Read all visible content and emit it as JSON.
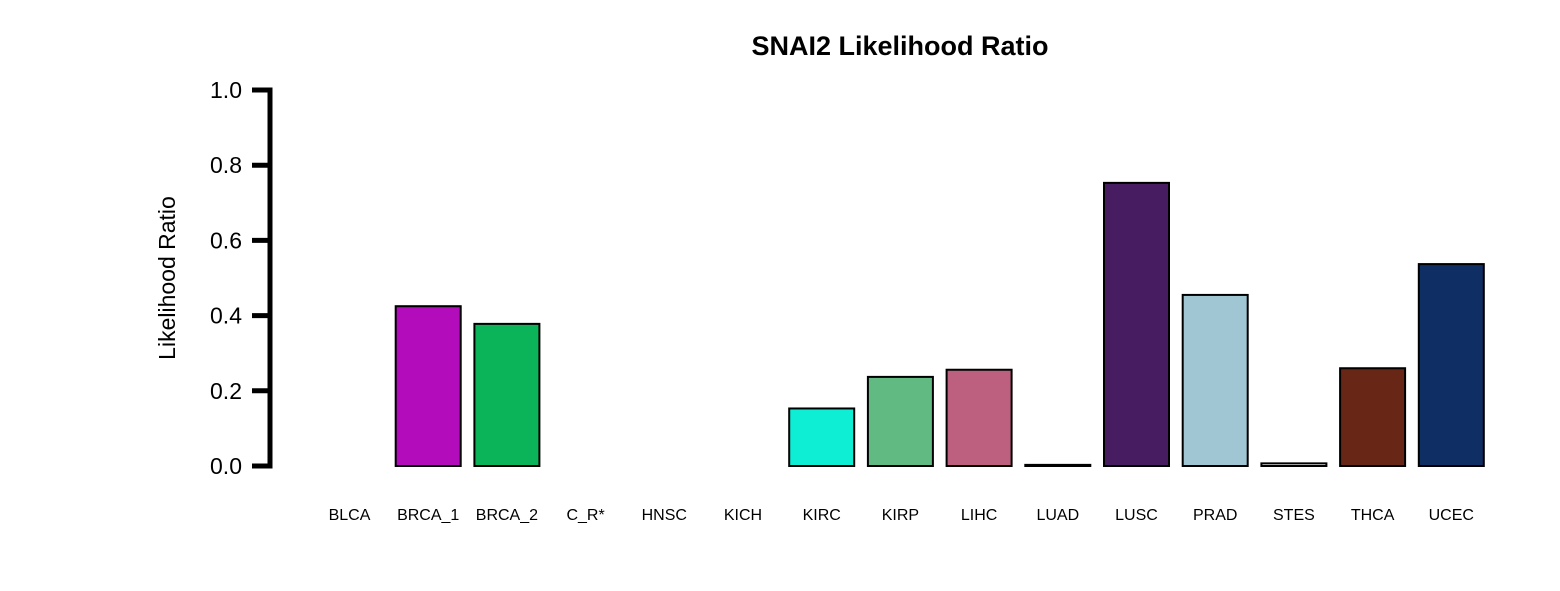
{
  "chart_data": {
    "type": "bar",
    "title": "SNAI2 Likelihood Ratio",
    "xlabel": "",
    "ylabel": "Likelihood Ratio",
    "ylim": [
      0,
      1.0
    ],
    "y_ticks": [
      "0.0",
      "0.2",
      "0.4",
      "0.6",
      "0.8",
      "1.0"
    ],
    "grid": false,
    "legend": "none",
    "categories": [
      "BLCA",
      "BRCA_1",
      "BRCA_2",
      "C_R*",
      "HNSC",
      "KICH",
      "KIRC",
      "KIRP",
      "LIHC",
      "LUAD",
      "LUSC",
      "PRAD",
      "STES",
      "THCA",
      "UCEC"
    ],
    "values": [
      0.0,
      0.425,
      0.378,
      0.0,
      0.0,
      0.0,
      0.153,
      0.237,
      0.256,
      0.003,
      0.753,
      0.455,
      0.007,
      0.26,
      0.537
    ],
    "colors": [
      "#ffffff",
      "#b30cbb",
      "#0bb458",
      "#ffffff",
      "#ffffff",
      "#ffffff",
      "#0deed5",
      "#60ba81",
      "#bd607f",
      "#ffffff",
      "#481c60",
      "#a0c6d3",
      "#ffffff",
      "#682616",
      "#0f2e63"
    ]
  }
}
